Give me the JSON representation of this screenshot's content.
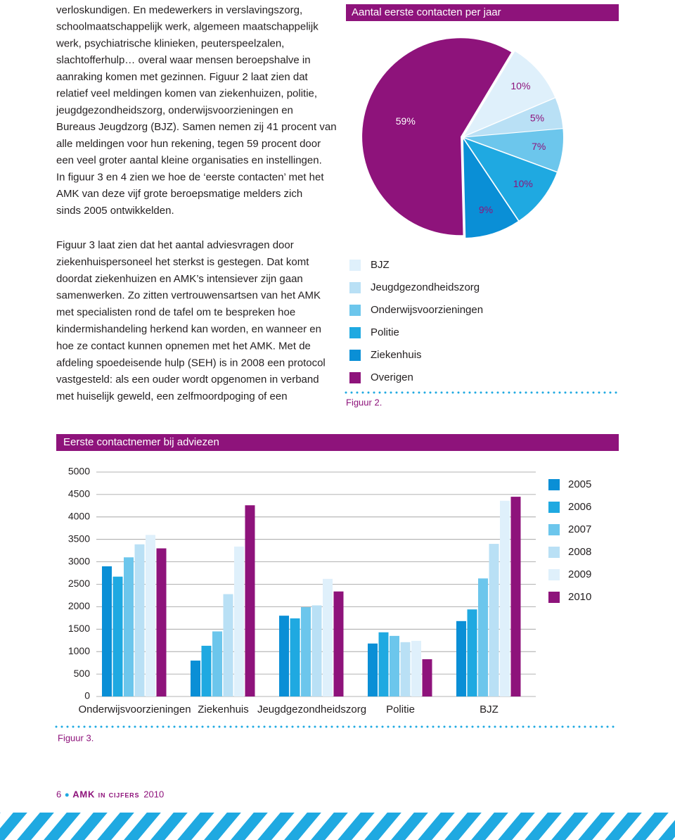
{
  "paragraphs": [
    [
      "verloskundigen. En medewerkers in verslavingszorg,",
      "schoolmaatschappelijk werk, algemeen maatschappelijk",
      "werk, psychiatrische klinieken, peuterspeelzalen,",
      "slachtofferhulp… overal waar mensen beroepshalve in",
      "aanraking komen met gezinnen. Figuur 2 laat zien dat",
      "relatief veel meldingen komen van ziekenhuizen, politie,",
      "jeugdgezondheidszorg, onderwijsvoorzieningen en",
      "Bureaus Jeugdzorg (BJZ). Samen nemen zij 41 procent van",
      "alle meldingen voor hun rekening, tegen 59 procent door",
      "een veel groter aantal kleine organisaties en instellingen.",
      "In figuur 3 en 4 zien we hoe de ‘eerste contacten’ met het",
      "AMK van deze vijf grote beroepsmatige melders zich",
      "sinds 2005 ontwikkelden."
    ],
    [
      "Figuur 3 laat zien dat het aantal adviesvragen door",
      "ziekenhuispersoneel het sterkst is gestegen. Dat komt",
      "doordat ziekenhuizen en AMK’s intensiever zijn gaan",
      "samenwerken. Zo zitten vertrouwensartsen van het AMK",
      "met specialisten rond de tafel om te bespreken hoe",
      "kindermishandeling herkend kan worden, en wanneer en",
      "hoe ze contact kunnen opnemen met het AMK. Met de",
      "afdeling spoedeisende hulp (SEH) is in 2008 een protocol",
      "vastgesteld: als een ouder wordt opgenomen in verband",
      "met huiselijk geweld, een zelfmoordpoging of een"
    ]
  ],
  "chart_data": [
    {
      "type": "pie",
      "title": "Aantal eerste contacten per jaar",
      "caption": "Figuur 2.",
      "categories": [
        "BJZ",
        "Jeugdgezondheidszorg",
        "Onderwijsvoorzieningen",
        "Politie",
        "Ziekenhuis",
        "Overigen"
      ],
      "values": [
        10,
        5,
        7,
        10,
        9,
        59
      ],
      "value_labels": [
        "10%",
        "5%",
        "7%",
        "10%",
        "9%",
        "59%"
      ],
      "colors": [
        "#dff0fb",
        "#b9e0f5",
        "#6cc6ec",
        "#1fa9e1",
        "#0a8fd6",
        "#8e137b"
      ]
    },
    {
      "type": "bar",
      "title": "Eerste contactnemer bij adviezen",
      "caption": "Figuur 3.",
      "categories": [
        "Onderwijsvoorzieningen",
        "Ziekenhuis",
        "Jeugdgezondheidszorg",
        "Politie",
        "BJZ"
      ],
      "series": [
        {
          "name": "2005",
          "color": "#0a8fd6",
          "values": [
            2900,
            800,
            1800,
            1180,
            1680
          ]
        },
        {
          "name": "2006",
          "color": "#1fa9e1",
          "values": [
            2670,
            1130,
            1740,
            1430,
            1940
          ]
        },
        {
          "name": "2007",
          "color": "#6cc6ec",
          "values": [
            3100,
            1450,
            1990,
            1350,
            2630
          ]
        },
        {
          "name": "2008",
          "color": "#b9e0f5",
          "values": [
            3390,
            2280,
            2030,
            1210,
            3400
          ]
        },
        {
          "name": "2009",
          "color": "#dff0fb",
          "values": [
            3600,
            3340,
            2620,
            1240,
            4360
          ]
        },
        {
          "name": "2010",
          "color": "#8e137b",
          "values": [
            3300,
            4260,
            2340,
            830,
            4450
          ]
        }
      ],
      "ylim": [
        0,
        5000
      ],
      "yticks": [
        0,
        500,
        1000,
        1500,
        2000,
        2500,
        3000,
        3500,
        4000,
        4500,
        5000
      ],
      "grid": true
    }
  ],
  "footer": {
    "page": "6",
    "publication": "AMK in cijfers",
    "year": "2010"
  }
}
